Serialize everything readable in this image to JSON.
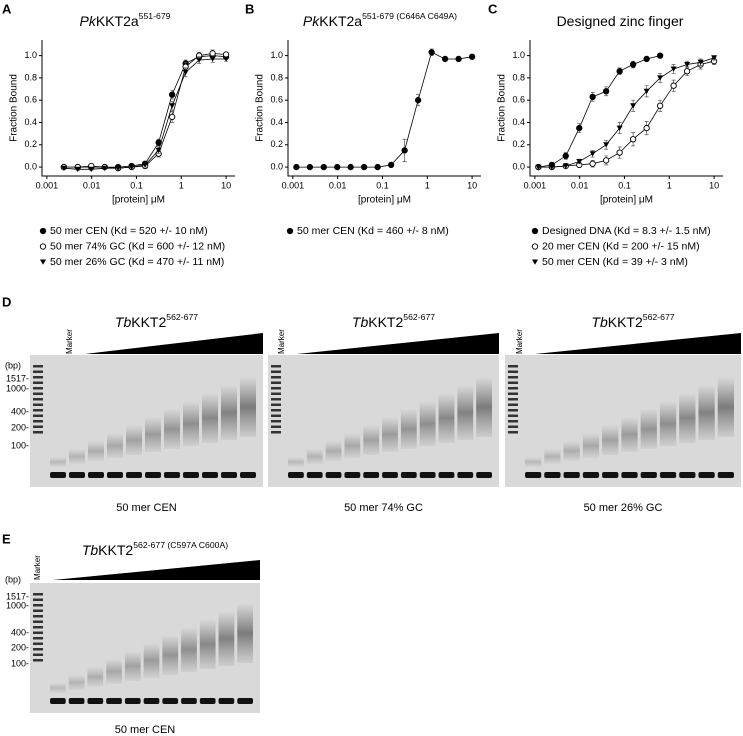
{
  "chart_data": [
    {
      "type": "scatter",
      "panel": "A",
      "title": {
        "italic": "Pk",
        "text": "KKT2a",
        "sup": "551-679"
      },
      "xlabel": "[protein] μM",
      "ylabel": "Fraction Bound",
      "xscale": "log",
      "xlim": [
        0.00078,
        15.8
      ],
      "xticks": [
        0.001,
        0.01,
        0.1,
        1,
        10
      ],
      "ylim": [
        -0.08,
        1.14
      ],
      "yticks": [
        {
          "value": 0,
          "label": "0.0"
        },
        0.2,
        0.4,
        0.6,
        0.8,
        {
          "value": 1,
          "label": "1.0"
        }
      ],
      "x": [
        0.0024,
        0.0049,
        0.0098,
        0.0195,
        0.039,
        0.078,
        0.156,
        0.3125,
        0.625,
        1.25,
        2.5,
        5,
        10
      ],
      "series": [
        {
          "name": "50 mer CEN (Kd = 520 +/- 10 nM)",
          "marker": "filled-circle",
          "color": "#000000",
          "values": [
            0,
            0,
            0,
            0,
            0,
            0.01,
            0.03,
            0.22,
            0.65,
            0.93,
            0.99,
            1.0,
            0.99
          ],
          "errors": [
            0.01,
            0.01,
            0.01,
            0.01,
            0.01,
            0.01,
            0.02,
            0.03,
            0.04,
            0.03,
            0.02,
            0.02,
            0.02
          ]
        },
        {
          "name": "50 mer 74% GC (Kd = 600 +/- 12 nM)",
          "marker": "open-circle",
          "color": "#000000",
          "values": [
            0,
            0,
            0.01,
            0,
            -0.01,
            0,
            0.01,
            0.12,
            0.45,
            0.9,
            1.0,
            1.02,
            1.01
          ],
          "errors": [
            0.01,
            0.01,
            0.01,
            0.01,
            0.01,
            0.01,
            0.02,
            0.03,
            0.05,
            0.04,
            0.03,
            0.03,
            0.02
          ]
        },
        {
          "name": "50 mer 26% GC (Kd = 470 +/- 11 nM)",
          "marker": "triangle-down",
          "color": "#000000",
          "values": [
            -0.01,
            -0.02,
            -0.02,
            -0.01,
            -0.01,
            0,
            0.02,
            0.15,
            0.55,
            0.85,
            0.96,
            0.97,
            0.97
          ],
          "errors": [
            0.01,
            0.01,
            0.01,
            0.01,
            0.01,
            0.01,
            0.02,
            0.03,
            0.04,
            0.04,
            0.03,
            0.03,
            0.02
          ]
        }
      ]
    },
    {
      "type": "scatter",
      "panel": "B",
      "title": {
        "italic": "Pk",
        "text": "KKT2a",
        "sup": "551-679 (C646A C649A)"
      },
      "xlabel": "[protein] μM",
      "ylabel": "Fraction Bound",
      "xscale": "log",
      "xlim": [
        0.00078,
        15.8
      ],
      "xticks": [
        0.001,
        0.01,
        0.1,
        1,
        10
      ],
      "ylim": [
        -0.08,
        1.14
      ],
      "yticks": [
        {
          "value": 0,
          "label": "0.0"
        },
        0.2,
        0.4,
        0.6,
        0.8,
        {
          "value": 1,
          "label": "1.0"
        }
      ],
      "x": [
        0.0012,
        0.0024,
        0.0049,
        0.0098,
        0.0195,
        0.039,
        0.078,
        0.156,
        0.3125,
        0.625,
        1.25,
        2.5,
        5,
        10
      ],
      "series": [
        {
          "name": "50 mer CEN (Kd = 460 +/- 8 nM)",
          "marker": "filled-circle",
          "color": "#000000",
          "values": [
            0,
            0,
            0,
            0,
            0,
            0,
            0,
            0.02,
            0.15,
            0.6,
            1.03,
            0.97,
            0.97,
            0.99
          ],
          "errors": [
            0.01,
            0.01,
            0.01,
            0.01,
            0.01,
            0.01,
            0.01,
            0.02,
            0.1,
            0.05,
            0.03,
            0.02,
            0.02,
            0.02
          ]
        }
      ]
    },
    {
      "type": "scatter",
      "panel": "C",
      "title": {
        "text": "Designed zinc finger"
      },
      "xlabel": "[protein] μM",
      "ylabel": "Fraction Bound",
      "xscale": "log",
      "xlim": [
        0.00078,
        15.8
      ],
      "xticks": [
        0.001,
        0.01,
        0.1,
        1,
        10
      ],
      "ylim": [
        -0.08,
        1.14
      ],
      "yticks": [
        {
          "value": 0,
          "label": "0.0"
        },
        0.2,
        0.4,
        0.6,
        0.8,
        {
          "value": 1,
          "label": "1.0"
        }
      ],
      "x": [
        0.0012,
        0.0024,
        0.0049,
        0.0098,
        0.0195,
        0.039,
        0.078,
        0.156,
        0.3125,
        0.625,
        1.25,
        2.5,
        5,
        10
      ],
      "series": [
        {
          "name": "Designed DNA (Kd = 8.3 +/- 1.5 nM)",
          "marker": "filled-circle",
          "color": "#000000",
          "values": [
            0,
            0.02,
            0.1,
            0.35,
            0.63,
            0.68,
            0.86,
            0.92,
            0.97,
            1.0,
            null,
            null,
            null,
            null
          ],
          "errors": [
            0.01,
            0.02,
            0.03,
            0.04,
            0.04,
            0.04,
            0.03,
            0.03,
            0.02,
            0.02,
            null,
            null,
            null,
            null
          ]
        },
        {
          "name": "20 mer CEN (Kd = 200 +/- 15 nM)",
          "marker": "open-circle",
          "color": "#000000",
          "values": [
            0,
            0,
            0.01,
            0.02,
            0.03,
            0.06,
            0.13,
            0.25,
            0.35,
            0.55,
            0.73,
            0.86,
            0.92,
            0.95
          ],
          "errors": [
            0.01,
            0.01,
            0.02,
            0.02,
            0.03,
            0.04,
            0.05,
            0.06,
            0.06,
            0.05,
            0.05,
            0.04,
            0.04,
            0.03
          ]
        },
        {
          "name": "50 mer CEN (Kd = 39 +/- 3 nM)",
          "marker": "triangle-down",
          "color": "#000000",
          "values": [
            0,
            0,
            0.01,
            0.05,
            0.12,
            0.2,
            0.35,
            0.55,
            0.68,
            0.8,
            0.88,
            0.92,
            0.94,
            0.98
          ],
          "errors": [
            0.01,
            0.01,
            0.02,
            0.02,
            0.03,
            0.04,
            0.05,
            0.05,
            0.05,
            0.04,
            0.04,
            0.03,
            0.03,
            0.02
          ]
        }
      ]
    }
  ],
  "gels": [
    {
      "panel": "D",
      "header": {
        "italic": "Tb",
        "text": "KKT2",
        "sup": "562-677"
      },
      "lane_label": "Marker",
      "units": "(bp)",
      "ladder": [
        "1517-",
        "1000-",
        "400-",
        "200-",
        "100-"
      ],
      "caption": "50 mer CEN"
    },
    {
      "header": {
        "italic": "Tb",
        "text": "KKT2",
        "sup": "562-677"
      },
      "lane_label": "Marker",
      "caption": "50 mer 74% GC"
    },
    {
      "header": {
        "italic": "Tb",
        "text": "KKT2",
        "sup": "562-677"
      },
      "lane_label": "Marker",
      "caption": "50 mer 26% GC"
    },
    {
      "panel": "E",
      "header": {
        "italic": "Tb",
        "text": "KKT2",
        "sup": "562-677 (C597A C600A)"
      },
      "lane_label": "Marker",
      "units": "(bp)",
      "ladder": [
        "1517-",
        "1000-",
        "400-",
        "200-",
        "100-"
      ],
      "caption": "50 mer CEN"
    }
  ]
}
